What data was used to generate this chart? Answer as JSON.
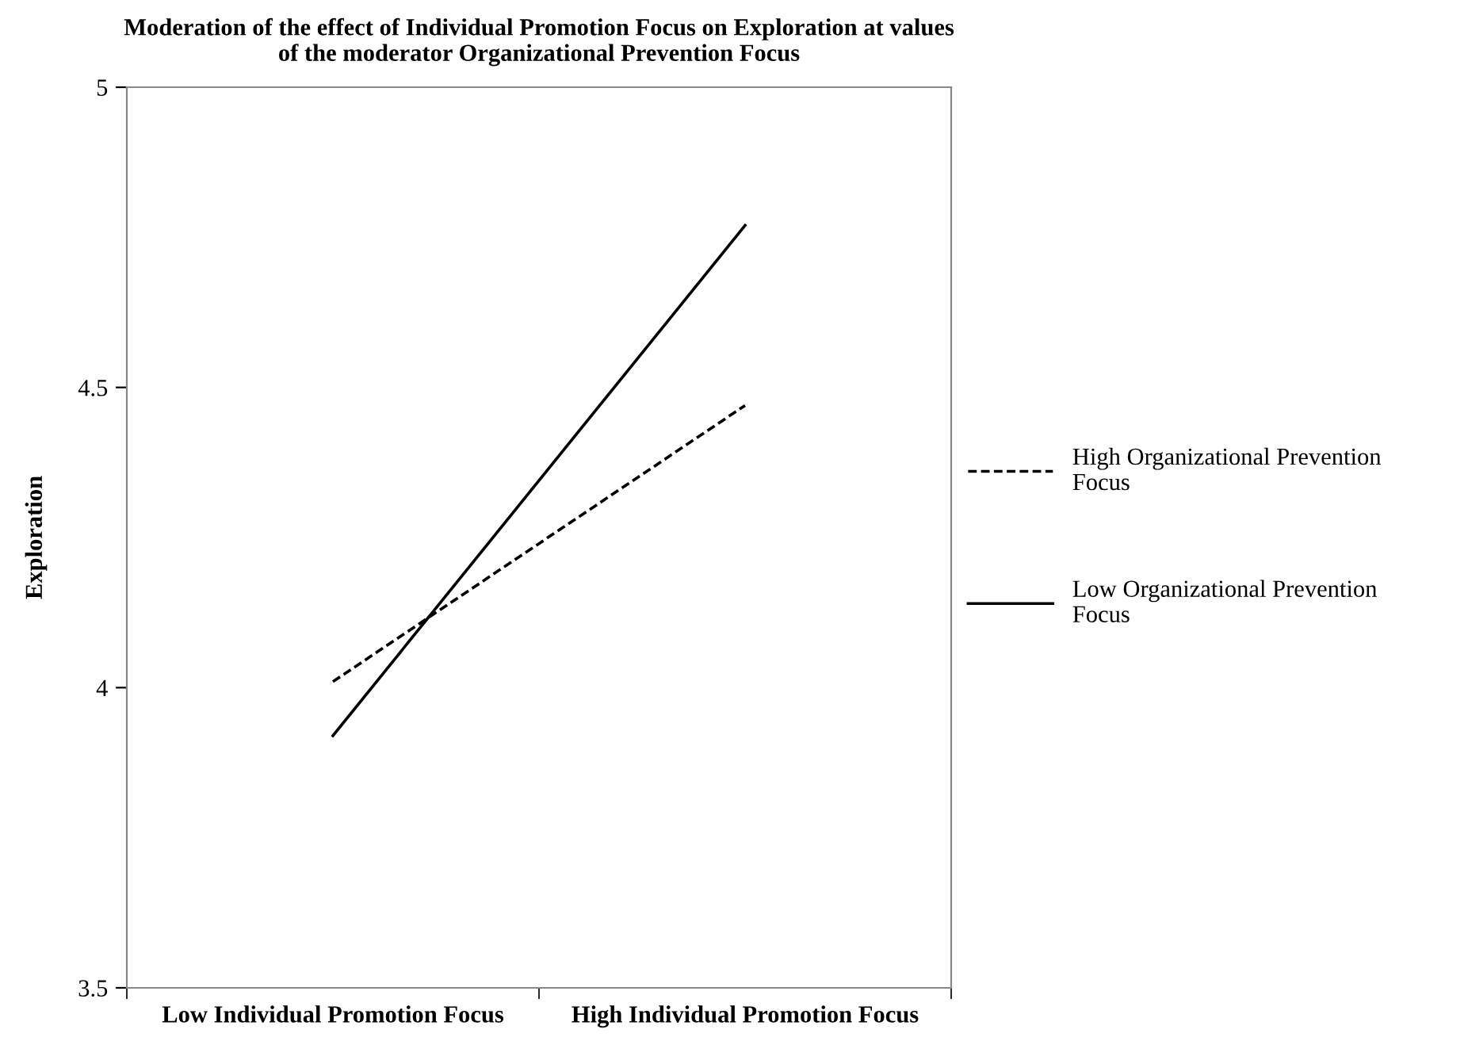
{
  "chart_data": {
    "type": "line",
    "title": "Moderation of the effect of Individual Promotion Focus on Exploration at values\nof the moderator Organizational Prevention Focus",
    "ylabel": "Exploration",
    "categories": [
      "Low Individual Promotion Focus",
      "High Individual Promotion Focus"
    ],
    "series": [
      {
        "name": "High Organizational Prevention\nFocus",
        "color": "#000000",
        "line_style": "dashed",
        "values": [
          4.01,
          4.47
        ]
      },
      {
        "name": "Low Organizational Prevention\nFocus",
        "color": "#000000",
        "line_style": "solid",
        "values": [
          3.92,
          4.77
        ]
      }
    ],
    "ylim": [
      3.5,
      5
    ],
    "yticks": [
      3.5,
      4,
      4.5,
      5
    ],
    "grid": false,
    "legend": "right",
    "marker": "none"
  }
}
